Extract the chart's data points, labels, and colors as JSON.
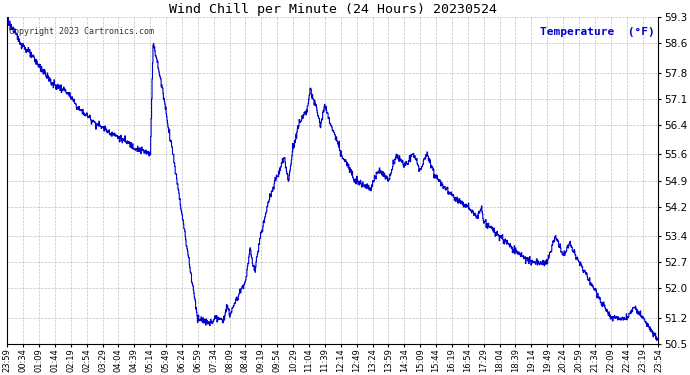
{
  "title": "Wind Chill per Minute (24 Hours) 20230524",
  "copyright": "Copyright 2023 Cartronics.com",
  "legend_label": "Temperature  (°F)",
  "line_color": "#0000CC",
  "legend_color": "#0000CC",
  "background_color": "#ffffff",
  "grid_color": "#999999",
  "ylim": [
    50.5,
    59.3
  ],
  "yticks": [
    50.5,
    51.2,
    52.0,
    52.7,
    53.4,
    54.2,
    54.9,
    55.6,
    56.4,
    57.1,
    57.8,
    58.6,
    59.3
  ],
  "xtick_labels": [
    "23:59",
    "00:34",
    "01:09",
    "01:44",
    "02:19",
    "02:54",
    "03:29",
    "04:04",
    "04:39",
    "05:14",
    "05:49",
    "06:24",
    "06:59",
    "07:34",
    "08:09",
    "08:44",
    "09:19",
    "09:54",
    "10:29",
    "11:04",
    "11:39",
    "12:14",
    "12:49",
    "13:24",
    "13:59",
    "14:34",
    "15:09",
    "15:44",
    "16:19",
    "16:54",
    "17:29",
    "18:04",
    "18:39",
    "19:14",
    "19:49",
    "20:24",
    "20:59",
    "21:34",
    "22:09",
    "22:44",
    "23:19",
    "23:54"
  ]
}
